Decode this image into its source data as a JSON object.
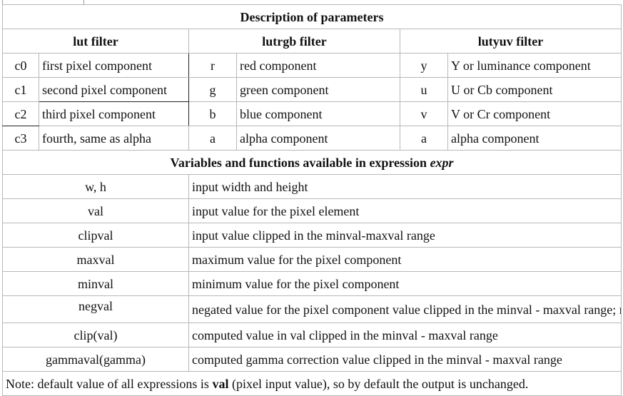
{
  "title": "Description of parameters",
  "headers": {
    "lut": "lut filter",
    "lutrgb": "lutrgb filter",
    "lutyuv": "lutyuv filter"
  },
  "rows": [
    {
      "lut_var": "c0",
      "lut_desc": "first pixel component",
      "rgb_var": "r",
      "rgb_desc": "red component",
      "yuv_var": "y",
      "yuv_desc": "Y or luminance component"
    },
    {
      "lut_var": "c1",
      "lut_desc": "second pixel component",
      "rgb_var": "g",
      "rgb_desc": "green component",
      "yuv_var": "u",
      "yuv_desc": "U or Cb component"
    },
    {
      "lut_var": "c2",
      "lut_desc": "third pixel component",
      "rgb_var": "b",
      "rgb_desc": "blue component",
      "yuv_var": "v",
      "yuv_desc": "V or Cr component"
    },
    {
      "lut_var": "c3",
      "lut_desc": "fourth, same as alpha",
      "rgb_var": "a",
      "rgb_desc": "alpha component",
      "yuv_var": "a",
      "yuv_desc": "alpha component"
    }
  ],
  "vars_heading": {
    "prefix": "Variables and functions available in expression ",
    "expr": "expr"
  },
  "vars": [
    {
      "name": "w, h",
      "desc": "input width and height"
    },
    {
      "name": "val",
      "desc": "input value for the pixel element"
    },
    {
      "name": "clipval",
      "desc": "input value clipped in the minval-maxval range"
    },
    {
      "name": "maxval",
      "desc": "maximum value for the pixel component"
    },
    {
      "name": "minval",
      "desc": "minimum value for the pixel component"
    },
    {
      "name": "negval",
      "desc": "negated value for the pixel component value clipped in the minval - maxval range; negval = maxval - clipval + minval"
    },
    {
      "name": "clip(val)",
      "desc": "computed value in val clipped in the minval - maxval range"
    },
    {
      "name": "gammaval(gamma)",
      "desc": "computed gamma correction value clipped in the minval - maxval range"
    }
  ],
  "note": {
    "prefix": "Note: default value of all expressions is ",
    "bold": "val",
    "suffix": " (pixel input value), so by default the output is unchanged."
  }
}
